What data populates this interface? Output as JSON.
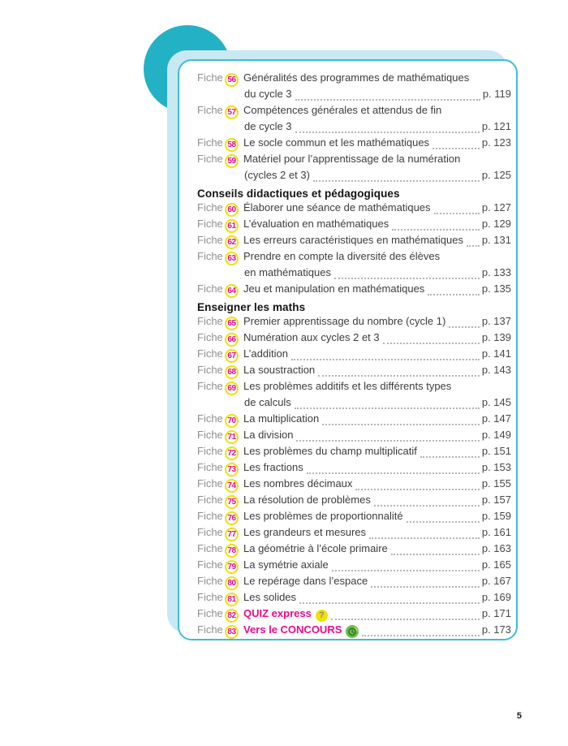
{
  "folio": "5",
  "colors": {
    "teal": "#23b1c6",
    "lightblue": "#c8e8f2",
    "border": "#3ebdd8",
    "yellow": "#f0e108",
    "magenta": "#e80a8a",
    "green": "#6cbf4a",
    "green_dark": "#2f6b2f"
  },
  "toc": {
    "fiche_label": "Fiche",
    "items": [
      {
        "type": "entry",
        "num": "56",
        "line1": "Généralités des programmes de mathématiques",
        "line2": "du cycle 3",
        "page": "p. 119"
      },
      {
        "type": "entry",
        "num": "57",
        "line1": "Compétences générales et attendus de fin",
        "line2": "de cycle 3",
        "page": "p. 121"
      },
      {
        "type": "entry",
        "num": "58",
        "line1": "Le socle commun et les mathématiques",
        "page": "p. 123"
      },
      {
        "type": "entry",
        "num": "59",
        "line1": "Matériel pour l’apprentissage de la numération",
        "line2": "(cycles 2 et 3)",
        "page": "p. 125"
      },
      {
        "type": "header",
        "label": "Conseils didactiques et pédagogiques"
      },
      {
        "type": "entry",
        "num": "60",
        "line1": "Élaborer une séance de mathématiques",
        "page": "p. 127"
      },
      {
        "type": "entry",
        "num": "61",
        "line1": "L’évaluation en mathématiques",
        "page": "p. 129"
      },
      {
        "type": "entry",
        "num": "62",
        "line1": "Les erreurs caractéristiques en mathématiques",
        "page": "p. 131"
      },
      {
        "type": "entry",
        "num": "63",
        "line1": "Prendre en compte la diversité des élèves",
        "line2": "en mathématiques",
        "page": "p. 133"
      },
      {
        "type": "entry",
        "num": "64",
        "line1": "Jeu et manipulation en mathématiques",
        "page": "p. 135"
      },
      {
        "type": "header",
        "label": "Enseigner les maths"
      },
      {
        "type": "entry",
        "num": "65",
        "line1": "Premier apprentissage du nombre (cycle 1)",
        "page": "p. 137"
      },
      {
        "type": "entry",
        "num": "66",
        "line1": "Numération aux cycles 2 et 3",
        "page": "p. 139"
      },
      {
        "type": "entry",
        "num": "67",
        "line1": "L’addition",
        "page": "p. 141"
      },
      {
        "type": "entry",
        "num": "68",
        "line1": "La soustraction",
        "page": "p. 143"
      },
      {
        "type": "entry",
        "num": "69",
        "line1": "Les problèmes additifs et les différents types",
        "line2": "de calculs",
        "page": "p. 145"
      },
      {
        "type": "entry",
        "num": "70",
        "line1": "La multiplication",
        "page": "p. 147"
      },
      {
        "type": "entry",
        "num": "71",
        "line1": "La division",
        "page": "p. 149"
      },
      {
        "type": "entry",
        "num": "72",
        "line1": "Les problèmes du champ multiplicatif",
        "page": "p. 151"
      },
      {
        "type": "entry",
        "num": "73",
        "line1": "Les fractions",
        "page": "p. 153"
      },
      {
        "type": "entry",
        "num": "74",
        "line1": "Les nombres décimaux",
        "page": "p. 155"
      },
      {
        "type": "entry",
        "num": "75",
        "line1": "La résolution de problèmes",
        "page": "p. 157"
      },
      {
        "type": "entry",
        "num": "76",
        "line1": "Les problèmes de proportionnalité",
        "page": "p. 159"
      },
      {
        "type": "entry",
        "num": "77",
        "line1": "Les grandeurs et mesures",
        "page": "p. 161"
      },
      {
        "type": "entry",
        "num": "78",
        "line1": "La géométrie à l’école primaire",
        "page": "p. 163"
      },
      {
        "type": "entry",
        "num": "79",
        "line1": "La symétrie axiale",
        "page": "p. 165"
      },
      {
        "type": "entry",
        "num": "80",
        "line1": "Le repérage dans l’espace",
        "page": "p. 167"
      },
      {
        "type": "entry",
        "num": "81",
        "line1": "Les solides",
        "page": "p. 169"
      },
      {
        "type": "entry",
        "num": "82",
        "line1": "QUIZ express",
        "page": "p. 171",
        "highlight": true,
        "icon": "question-mark"
      },
      {
        "type": "entry",
        "num": "83",
        "line1": "Vers le CONCOURS",
        "page": "p. 173",
        "highlight": true,
        "icon": "clock"
      }
    ]
  }
}
